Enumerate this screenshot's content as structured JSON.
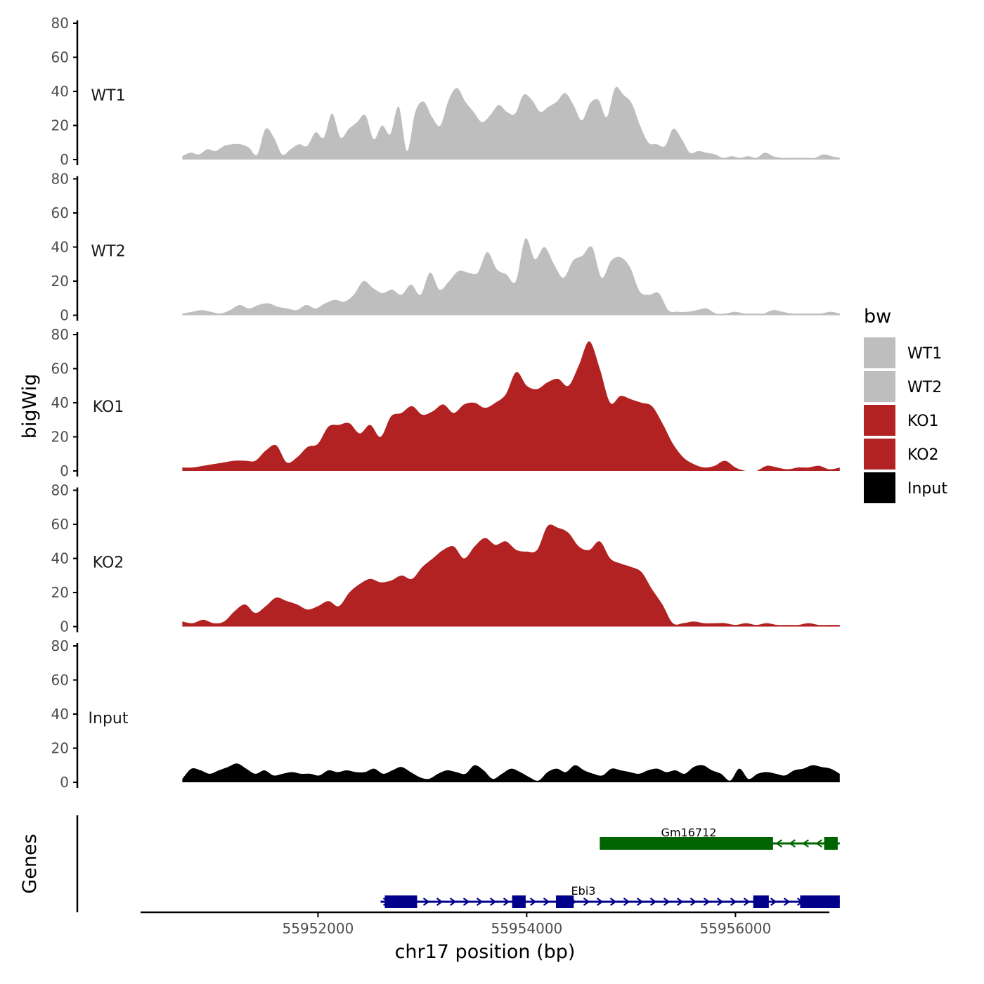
{
  "chart_data": {
    "type": "area",
    "title": "",
    "ylabel": "bigWig",
    "xlabel": "chr17 position (bp)",
    "xlim": [
      55950300,
      55956900
    ],
    "ylim": [
      0,
      80
    ],
    "yticks": [
      0,
      20,
      40,
      60,
      80
    ],
    "xticks": [
      55952000,
      55954000,
      55956000
    ],
    "xtick_labels": [
      "55952000",
      "55954000",
      "55956000"
    ],
    "data_start": 55950700,
    "data_end": 55957000,
    "tracks": [
      {
        "name": "WT1",
        "color": "#bebebe",
        "values": [
          2,
          4,
          3,
          6,
          5,
          8,
          9,
          9,
          7,
          3,
          18,
          13,
          3,
          6,
          9,
          8,
          16,
          13,
          27,
          13,
          18,
          22,
          26,
          12,
          20,
          15,
          31,
          5,
          28,
          34,
          25,
          20,
          35,
          42,
          34,
          28,
          22,
          26,
          32,
          28,
          27,
          38,
          35,
          28,
          31,
          34,
          39,
          32,
          23,
          33,
          35,
          25,
          42,
          38,
          33,
          20,
          10,
          9,
          8,
          18,
          12,
          4,
          5,
          4,
          3,
          1,
          2,
          1,
          2,
          1,
          4,
          2,
          1,
          1,
          1,
          1,
          1,
          3,
          2,
          1
        ]
      },
      {
        "name": "WT2",
        "color": "#bebebe",
        "values": [
          1,
          2,
          3,
          2,
          1,
          3,
          6,
          4,
          6,
          7,
          5,
          4,
          3,
          6,
          4,
          7,
          9,
          8,
          12,
          20,
          16,
          13,
          15,
          12,
          18,
          12,
          25,
          15,
          20,
          26,
          25,
          25,
          37,
          27,
          24,
          20,
          45,
          33,
          40,
          30,
          22,
          32,
          35,
          40,
          22,
          32,
          34,
          28,
          14,
          12,
          13,
          3,
          2,
          2,
          3,
          4,
          1,
          1,
          2,
          1,
          1,
          1,
          3,
          2,
          1,
          1,
          1,
          1,
          2,
          1
        ]
      },
      {
        "name": "KO1",
        "color": "#b22222",
        "values": [
          2,
          2,
          3,
          4,
          5,
          6,
          6,
          6,
          12,
          15,
          5,
          8,
          14,
          16,
          26,
          27,
          28,
          22,
          27,
          20,
          32,
          34,
          38,
          33,
          35,
          39,
          34,
          39,
          40,
          37,
          40,
          45,
          58,
          50,
          48,
          52,
          54,
          50,
          62,
          76,
          60,
          40,
          44,
          42,
          40,
          38,
          28,
          16,
          8,
          4,
          2,
          3,
          6,
          2,
          0,
          0,
          3,
          2,
          1,
          2,
          2,
          3,
          1,
          2
        ]
      },
      {
        "name": "KO2",
        "color": "#b22222",
        "values": [
          3,
          2,
          4,
          2,
          3,
          9,
          13,
          8,
          12,
          17,
          15,
          13,
          10,
          12,
          15,
          12,
          20,
          25,
          28,
          26,
          27,
          30,
          28,
          35,
          40,
          45,
          47,
          40,
          47,
          52,
          48,
          50,
          45,
          44,
          45,
          59,
          58,
          55,
          47,
          45,
          50,
          40,
          37,
          35,
          32,
          22,
          13,
          2,
          2,
          3,
          2,
          2,
          2,
          1,
          2,
          1,
          2,
          1,
          1,
          1,
          2,
          1,
          1,
          1
        ]
      },
      {
        "name": "Input",
        "color": "#000000",
        "values": [
          2,
          8,
          7,
          5,
          7,
          9,
          11,
          8,
          5,
          7,
          4,
          5,
          6,
          5,
          5,
          4,
          7,
          6,
          7,
          6,
          6,
          8,
          5,
          7,
          9,
          6,
          3,
          2,
          5,
          7,
          6,
          5,
          10,
          7,
          2,
          5,
          8,
          6,
          3,
          1,
          6,
          8,
          6,
          10,
          7,
          5,
          4,
          8,
          7,
          6,
          5,
          7,
          8,
          6,
          7,
          5,
          9,
          10,
          7,
          5,
          1,
          8,
          2,
          5,
          6,
          5,
          4,
          7,
          8,
          10,
          9,
          8,
          5
        ]
      }
    ],
    "genes_track": {
      "label": "Genes",
      "genes": [
        {
          "name": "Gm16712",
          "color": "#006400",
          "strand": "-",
          "start": 55954700,
          "end": 55957000,
          "exons": [
            [
              55954700,
              55956360
            ],
            [
              55956850,
              55956980
            ]
          ]
        },
        {
          "name": "Ebi3",
          "color": "#00008b",
          "strand": "+",
          "start": 55952600,
          "end": 55957000,
          "exons": [
            [
              55952640,
              55952950
            ],
            [
              55953860,
              55953990
            ],
            [
              55954280,
              55954450
            ],
            [
              55956170,
              55956320
            ],
            [
              55956620,
              55957000
            ]
          ]
        }
      ]
    },
    "legend": {
      "title": "bw",
      "position": "right",
      "entries": [
        {
          "label": "WT1",
          "color": "#bebebe"
        },
        {
          "label": "WT2",
          "color": "#bebebe"
        },
        {
          "label": "KO1",
          "color": "#b22222"
        },
        {
          "label": "KO2",
          "color": "#b22222"
        },
        {
          "label": "Input",
          "color": "#000000"
        }
      ]
    }
  }
}
